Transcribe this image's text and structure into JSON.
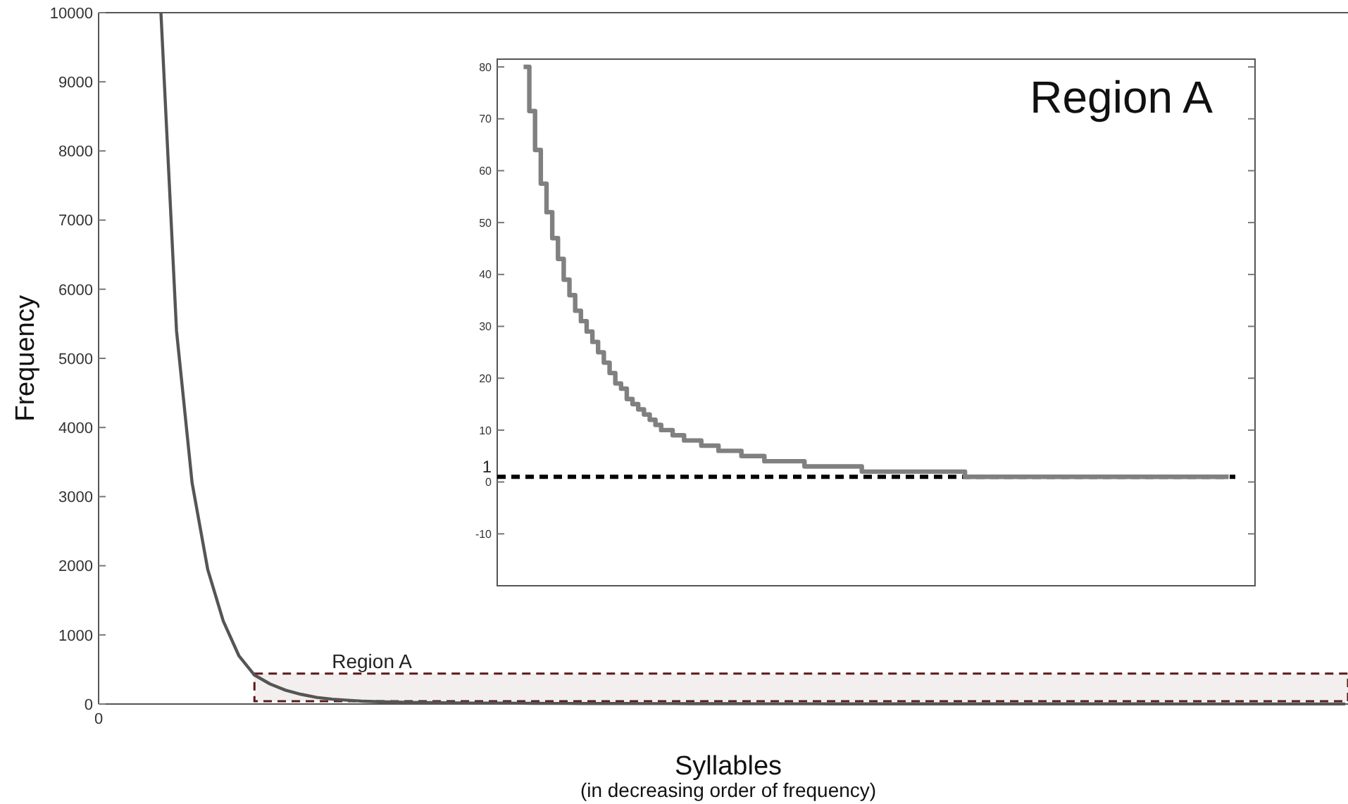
{
  "chart_data": [
    {
      "type": "line",
      "xlabel": "Syllables",
      "ylabel": "Frequency",
      "annotations": [
        "(in decreasing order of frequency)"
      ],
      "color": "#555555",
      "ylim": [
        0,
        10000
      ],
      "yticks": [
        0,
        1000,
        2000,
        3000,
        4000,
        5000,
        6000,
        7000,
        8000,
        9000,
        10000
      ],
      "categories": [
        "0",
        null,
        null,
        null,
        null,
        null,
        null,
        null,
        null,
        null,
        null,
        null,
        null,
        null,
        null,
        null,
        null,
        null,
        null,
        null,
        null,
        null,
        null,
        null,
        null,
        null,
        null,
        null,
        null,
        null,
        null,
        null,
        null,
        null,
        null,
        null,
        null,
        null,
        null,
        null,
        null,
        null,
        null,
        null,
        null,
        null,
        null,
        null,
        null,
        null,
        null,
        null,
        null,
        null,
        null,
        null,
        null,
        null,
        null,
        null,
        null,
        null,
        null,
        null,
        null,
        null,
        null,
        null,
        null,
        null,
        null,
        null,
        null,
        null,
        null,
        null,
        null,
        null,
        null,
        null,
        null
      ],
      "values": [
        null,
        null,
        null,
        null,
        10000,
        5400,
        3200,
        1950,
        1200,
        700,
        420,
        290,
        200,
        140,
        95,
        70,
        55,
        40,
        33,
        28,
        24,
        21,
        18,
        16,
        14,
        13,
        12,
        11,
        10,
        9,
        9,
        8,
        8,
        7,
        7,
        6,
        6,
        6,
        5,
        5,
        5,
        5,
        4,
        4,
        4,
        4,
        4,
        3,
        3,
        3,
        3,
        3,
        3,
        3,
        3,
        2,
        2,
        2,
        2,
        2,
        2,
        2,
        2,
        2,
        2,
        2,
        2,
        2,
        2,
        1,
        1,
        1,
        1,
        1,
        1,
        1,
        1,
        1,
        1,
        1,
        1
      ],
      "bands": [
        {
          "axis": "y",
          "from": 40,
          "to": 440,
          "label": "Region A",
          "color": "#5a1a1a"
        }
      ]
    },
    {
      "type": "step",
      "title": "Region A",
      "color": "#808080",
      "ylim": [
        -20,
        81.5
      ],
      "yticks": [
        -10,
        0,
        10,
        20,
        30,
        40,
        50,
        60,
        70,
        80
      ],
      "categories": [
        null,
        null,
        null,
        null,
        null,
        null,
        null,
        null,
        null,
        null,
        null,
        null,
        null,
        null,
        null,
        null,
        null,
        null,
        null,
        null,
        null,
        null,
        null,
        null,
        null,
        null,
        null,
        null,
        null,
        null,
        null,
        null,
        null,
        null,
        null,
        null,
        null,
        null,
        null,
        null,
        null,
        null,
        null,
        null,
        null,
        null,
        null,
        null,
        null,
        null,
        null,
        null,
        null,
        null,
        null,
        null,
        null,
        null,
        null,
        null,
        null,
        null,
        null,
        null,
        null,
        null,
        null,
        null,
        null,
        null,
        null,
        null,
        null,
        null,
        null,
        null,
        null,
        null,
        null,
        null,
        null,
        null,
        null,
        null,
        null,
        null,
        null,
        null,
        null,
        null,
        null,
        null,
        null,
        null,
        null,
        null,
        null,
        null,
        null,
        null,
        null,
        null,
        null,
        null,
        null,
        null,
        null,
        null,
        null,
        null,
        null,
        null,
        null,
        null,
        null,
        null,
        null,
        null,
        null,
        null,
        null,
        null,
        null,
        null
      ],
      "values": [
        80,
        71.5,
        64,
        57.5,
        52,
        47,
        43,
        39,
        36,
        33,
        31,
        29,
        27,
        25,
        23,
        21,
        19,
        18,
        16,
        15,
        14,
        13,
        12,
        11,
        10,
        10,
        9,
        9,
        8,
        8,
        8,
        7,
        7,
        7,
        6,
        6,
        6,
        6,
        5,
        5,
        5,
        5,
        4,
        4,
        4,
        4,
        4,
        4,
        4,
        3,
        3,
        3,
        3,
        3,
        3,
        3,
        3,
        3,
        3,
        2,
        2,
        2,
        2,
        2,
        2,
        2,
        2,
        2,
        2,
        2,
        2,
        2,
        2,
        2,
        2,
        2,
        2,
        1,
        1,
        1,
        1,
        1,
        1,
        1,
        1,
        1,
        1,
        1,
        1,
        1,
        1,
        1,
        1,
        1,
        1,
        1,
        1,
        1,
        1,
        1,
        1,
        1,
        1,
        1,
        1,
        1,
        1,
        1,
        1,
        1,
        1,
        1,
        1,
        1,
        1,
        1,
        1,
        1,
        1,
        1,
        1,
        1,
        1,
        1
      ],
      "ref_lines": [
        {
          "axis": "y",
          "value": 1,
          "label": "1",
          "color": "#000000",
          "line_style": "dashed"
        }
      ]
    }
  ]
}
